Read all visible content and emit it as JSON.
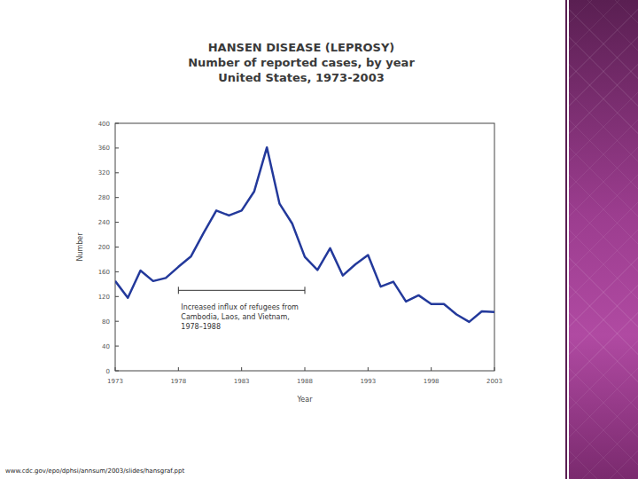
{
  "chart_data": {
    "type": "line",
    "title": "HANSEN DISEASE (LEPROSY)",
    "subtitle": [
      "Number of reported cases, by year",
      "United States, 1973-2003"
    ],
    "x_label": "Year",
    "y_label": "Number",
    "source": "www.cdc.gov/epo/dphsi/annsum/2003/slides/hansgraf.ppt",
    "x": [
      1973,
      1974,
      1975,
      1976,
      1977,
      1978,
      1979,
      1980,
      1981,
      1982,
      1983,
      1984,
      1985,
      1986,
      1987,
      1988,
      1989,
      1990,
      1991,
      1992,
      1993,
      1994,
      1995,
      1996,
      1997,
      1998,
      1999,
      2000,
      2001,
      2002,
      2003
    ],
    "values": [
      145,
      118,
      162,
      145,
      150,
      168,
      185,
      223,
      259,
      251,
      259,
      290,
      361,
      270,
      238,
      184,
      163,
      198,
      154,
      172,
      187,
      136,
      144,
      112,
      122,
      108,
      108,
      91,
      79,
      96,
      95
    ],
    "color": "#23399b",
    "xlim": [
      1973,
      2003
    ],
    "xticks": [
      1973,
      1978,
      1983,
      1988,
      1993,
      1998,
      2003
    ],
    "ylim": [
      0,
      400
    ],
    "yticks": [
      0,
      40,
      80,
      120,
      160,
      200,
      240,
      280,
      320,
      360,
      400
    ],
    "grid": false,
    "annotations": [
      {
        "text": [
          "Increased influx of refugees from",
          "Cambodia, Laos, and Vietnam,",
          "1978–1988"
        ],
        "x": [
          1978,
          1988
        ],
        "y": 130
      }
    ]
  }
}
